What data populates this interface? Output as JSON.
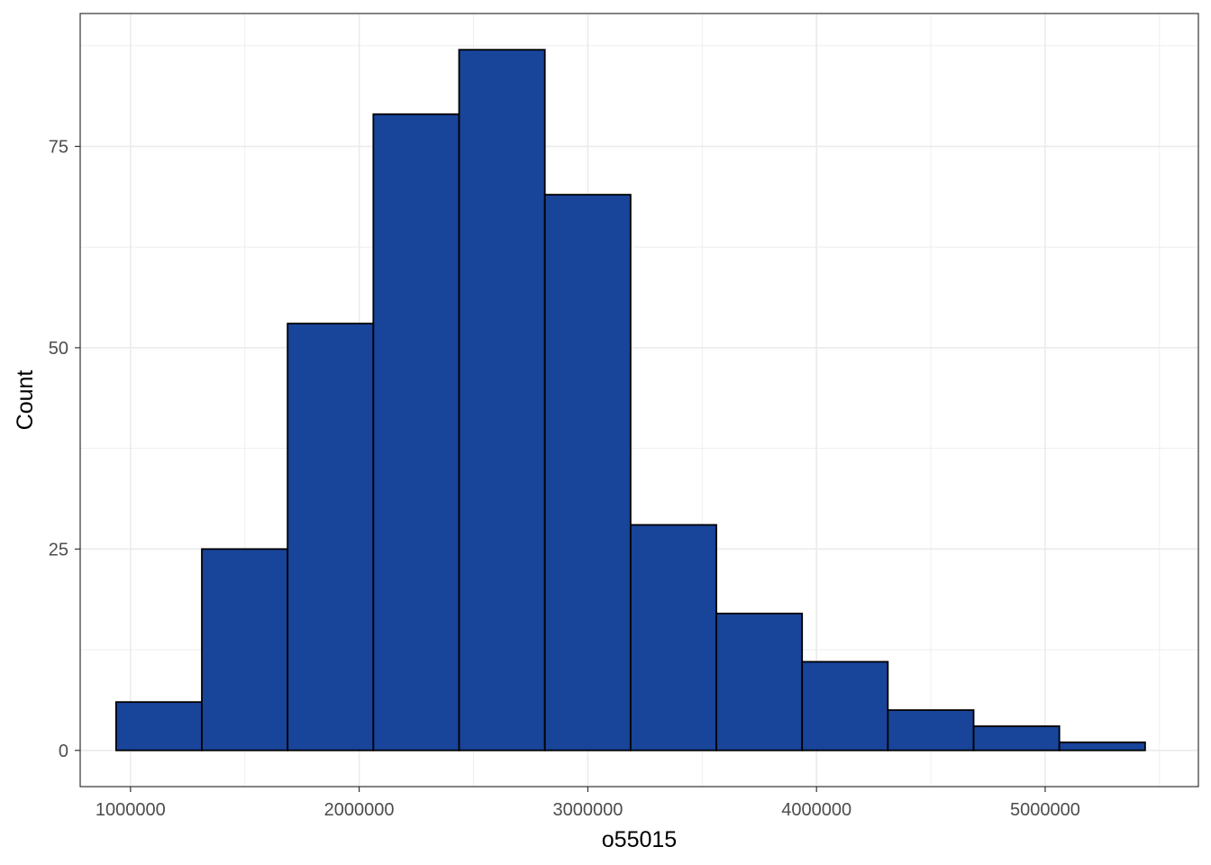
{
  "chart_data": {
    "type": "histogram",
    "title": "",
    "xlabel": "o55015",
    "ylabel": "Count",
    "xlim": [
      780000,
      5670000
    ],
    "ylim": [
      -4.5,
      91.5
    ],
    "x_ticks": [
      1000000,
      2000000,
      3000000,
      4000000,
      5000000
    ],
    "y_ticks": [
      0,
      25,
      50,
      75
    ],
    "bin_width": 375000,
    "bins": [
      {
        "x0": 937000,
        "x1": 1312000,
        "count": 6
      },
      {
        "x0": 1312000,
        "x1": 1687000,
        "count": 25
      },
      {
        "x0": 1687000,
        "x1": 2062000,
        "count": 53
      },
      {
        "x0": 2062000,
        "x1": 2437000,
        "count": 79
      },
      {
        "x0": 2437000,
        "x1": 2812000,
        "count": 87
      },
      {
        "x0": 2812000,
        "x1": 3187000,
        "count": 69
      },
      {
        "x0": 3187000,
        "x1": 3562000,
        "count": 28
      },
      {
        "x0": 3562000,
        "x1": 3937000,
        "count": 17
      },
      {
        "x0": 3937000,
        "x1": 4312000,
        "count": 11
      },
      {
        "x0": 4312000,
        "x1": 4687000,
        "count": 5
      },
      {
        "x0": 4687000,
        "x1": 5062000,
        "count": 3
      },
      {
        "x0": 5062000,
        "x1": 5437000,
        "count": 1
      }
    ],
    "bar_fill": "#18449a",
    "bar_stroke": "#000000",
    "grid": true,
    "grid_color": "#ebebeb",
    "legend": "none"
  }
}
